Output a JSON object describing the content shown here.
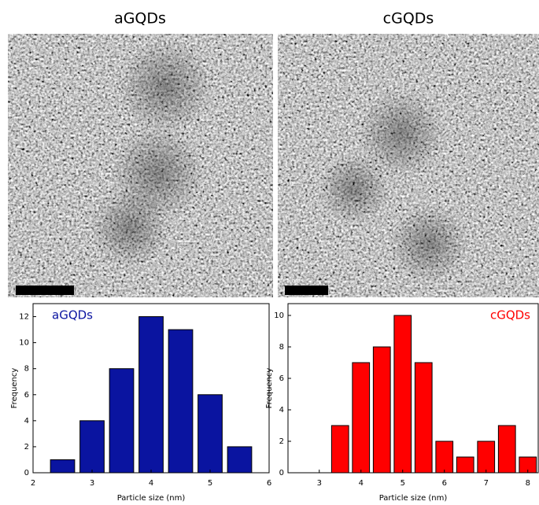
{
  "panels": [
    {
      "title": "aGQDs",
      "scale_bar": "5 nm"
    },
    {
      "title": "cGQDs",
      "scale_bar": "5 nm"
    }
  ],
  "chart_data": [
    {
      "type": "bar",
      "x_label": "Particle size (nm)",
      "y_label": "Frequency",
      "x": [
        2.5,
        3,
        3.5,
        4,
        4.5,
        5,
        5.5
      ],
      "series": [
        {
          "name": "aGQDs",
          "color": "#0a14a0",
          "values": [
            1,
            4,
            8,
            12,
            11,
            6,
            2
          ]
        }
      ],
      "xlim": [
        2,
        6
      ],
      "xticks": [
        2,
        3,
        4,
        5,
        6
      ],
      "ylim": [
        0,
        13
      ],
      "yticks": [
        0,
        2,
        4,
        6,
        8,
        10,
        12
      ],
      "legend": "top-left"
    },
    {
      "type": "bar",
      "x_label": "Particle size (nm)",
      "y_label": "Frequency",
      "x": [
        3.5,
        4,
        4.5,
        5,
        5.5,
        6,
        6.5,
        7,
        7.5,
        8
      ],
      "series": [
        {
          "name": "cGQDs",
          "color": "#ff0000",
          "values": [
            3,
            7,
            8,
            10,
            7,
            2,
            1,
            2,
            3,
            1
          ]
        }
      ],
      "xlim": [
        2.25,
        8.25
      ],
      "xticks": [
        3,
        4,
        5,
        6,
        7,
        8
      ],
      "ylim": [
        0,
        10.75
      ],
      "yticks": [
        0,
        2,
        4,
        6,
        8,
        10
      ],
      "legend": "top-right"
    }
  ]
}
